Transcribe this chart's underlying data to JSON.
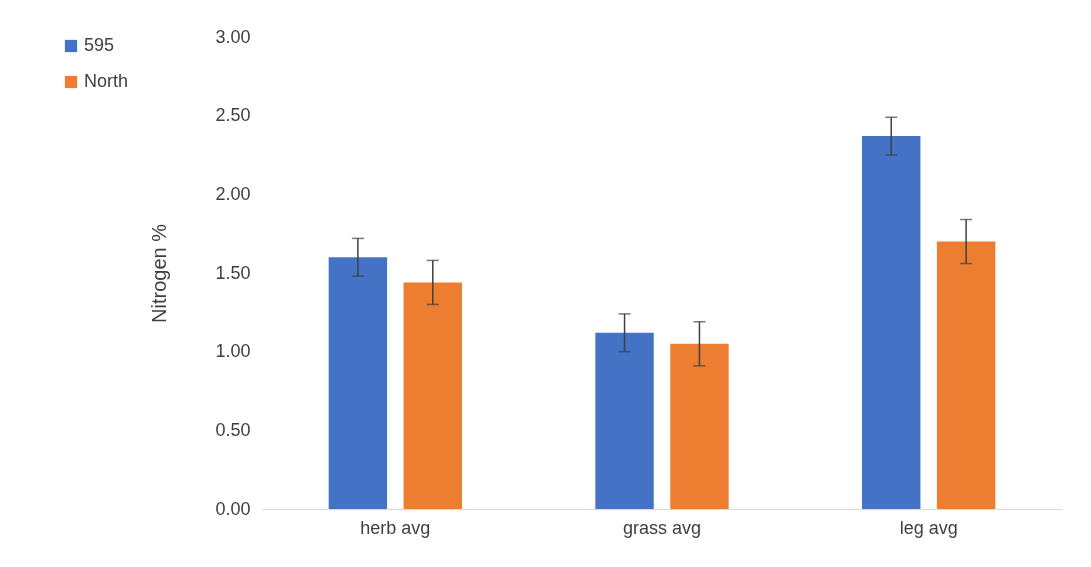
{
  "chart_data": {
    "type": "bar",
    "ylabel": "Nitrogen %",
    "categories": [
      "herb avg",
      "grass avg",
      "leg avg"
    ],
    "series": [
      {
        "name": "595",
        "color": "#4472c4",
        "values": [
          1.6,
          1.12,
          2.37
        ],
        "errors": [
          0.12,
          0.12,
          0.12
        ]
      },
      {
        "name": "North",
        "color": "#ed7d31",
        "values": [
          1.44,
          1.05,
          1.7
        ],
        "errors": [
          0.14,
          0.14,
          0.14
        ]
      }
    ],
    "ylim": [
      0,
      3
    ],
    "yticks": [
      {
        "value": 0,
        "label": "0.00"
      },
      {
        "value": 0.5,
        "label": "0.50"
      },
      {
        "value": 1,
        "label": "1.00"
      },
      {
        "value": 1.5,
        "label": "1.50"
      },
      {
        "value": 2,
        "label": "2.00"
      },
      {
        "value": 2.5,
        "label": "2.50"
      },
      {
        "value": 3,
        "label": "3.00"
      }
    ],
    "grid": false,
    "legend": "top left"
  }
}
